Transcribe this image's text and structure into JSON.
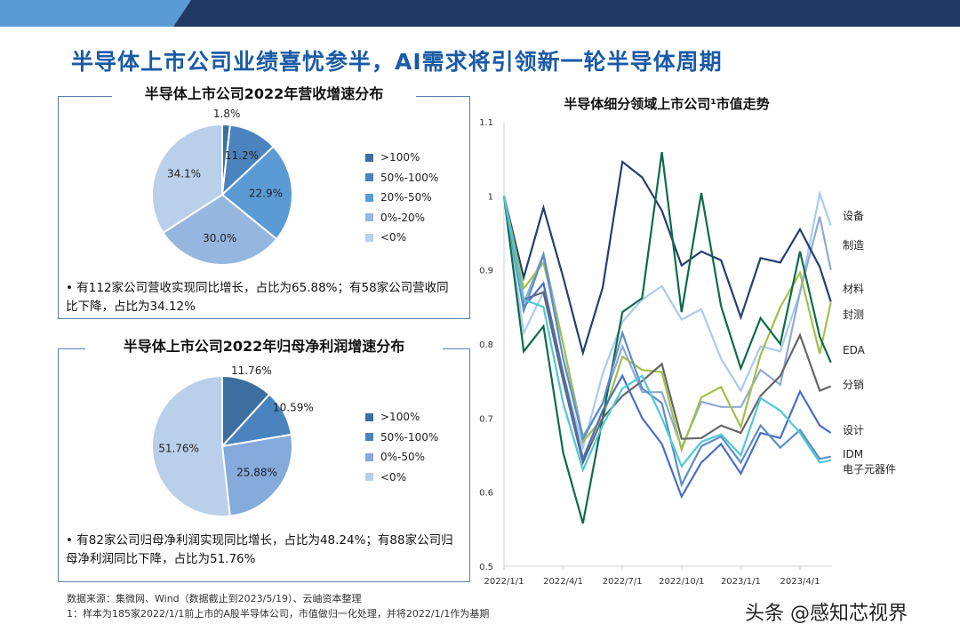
{
  "header": {
    "title": "半导体上市公司业绩喜忧参半，AI需求将引领新一轮半导体周期",
    "colors": {
      "band_light": "#5b9bd5",
      "band_dark": "#1f3864"
    }
  },
  "chart_data": [
    {
      "type": "pie",
      "title": "半导体上市公司2022年营收增速分布",
      "categories": [
        ">100%",
        "50%-100%",
        "20%-50%",
        "0%-20%",
        "<0%"
      ],
      "values": [
        1.8,
        11.2,
        22.9,
        30.0,
        34.1
      ],
      "labels": [
        "1.8%",
        "11.2%",
        "22.9%",
        "30.0%",
        "34.1%"
      ],
      "colors": [
        "#3c6e9f",
        "#4a83bd",
        "#5b9bd5",
        "#95b6df",
        "#b9cfea"
      ],
      "legend": "right",
      "note": "有112家公司营收实现同比增长，占比为65.88%；有58家公司营收同比下降，占比为34.12%"
    },
    {
      "type": "pie",
      "title": "半导体上市公司2022年归母净利润增速分布",
      "categories": [
        ">100%",
        "50%-100%",
        "0%-50%",
        "<0%"
      ],
      "values": [
        11.76,
        10.59,
        25.88,
        51.76
      ],
      "labels": [
        "11.76%",
        "10.59%",
        "25.88%",
        "51.76%"
      ],
      "colors": [
        "#3c6e9f",
        "#4a83bd",
        "#85aadc",
        "#b9cfea"
      ],
      "legend": "right",
      "note": "有82家公司归母净利润实现同比增长，占比为48.24%；有88家公司归母净利润同比下降，占比为51.76%"
    },
    {
      "type": "line",
      "title": "半导体细分领域上市公司¹市值走势",
      "x": [
        "2022/1/1",
        "2022/2/1",
        "2022/3/1",
        "2022/4/1",
        "2022/5/1",
        "2022/6/1",
        "2022/7/1",
        "2022/8/1",
        "2022/9/1",
        "2022/10/1",
        "2022/11/1",
        "2022/12/1",
        "2023/1/1",
        "2023/2/1",
        "2023/3/1",
        "2023/4/1",
        "2023/5/1",
        "2023/5/19"
      ],
      "xticks": [
        "2022/1/1",
        "2022/4/1",
        "2022/7/1",
        "2022/10/1",
        "2023/1/1",
        "2023/4/1"
      ],
      "yticks": [
        "0.5",
        "0.6",
        "0.7",
        "0.8",
        "0.9",
        "1",
        "1.1"
      ],
      "ylim": [
        0.5,
        1.1
      ],
      "grid": false,
      "legend": "right-end labels",
      "series": [
        {
          "name": "设备",
          "color": "#a9cbee",
          "values": [
            1.0,
            0.815,
            0.87,
            0.76,
            0.66,
            0.76,
            0.83,
            0.86,
            0.878,
            0.833,
            0.847,
            0.78,
            0.737,
            0.797,
            0.79,
            0.87,
            1.003,
            0.96
          ]
        },
        {
          "name": "制造",
          "color": "#8fa9d6",
          "values": [
            1.0,
            0.855,
            0.922,
            0.8,
            0.675,
            0.72,
            0.797,
            0.735,
            0.735,
            0.66,
            0.722,
            0.715,
            0.715,
            0.765,
            0.745,
            0.87,
            0.972,
            0.9
          ]
        },
        {
          "name": "材料",
          "color": "#223f72",
          "values": [
            1.0,
            0.89,
            0.984,
            0.89,
            0.788,
            0.876,
            1.046,
            1.025,
            0.98,
            0.906,
            0.925,
            0.913,
            0.836,
            0.916,
            0.91,
            0.955,
            0.904,
            0.857
          ]
        },
        {
          "name": "封测",
          "color": "#a2c04a",
          "values": [
            1.0,
            0.875,
            0.91,
            0.8,
            0.668,
            0.7,
            0.783,
            0.765,
            0.762,
            0.657,
            0.728,
            0.742,
            0.688,
            0.785,
            0.85,
            0.896,
            0.787,
            0.856
          ]
        },
        {
          "name": "EDA",
          "color": "#0e6b4a",
          "values": [
            1.0,
            0.79,
            0.824,
            0.653,
            0.558,
            0.7,
            0.843,
            0.862,
            1.059,
            0.843,
            1.004,
            0.851,
            0.767,
            0.835,
            0.8,
            0.925,
            0.81,
            0.775
          ]
        },
        {
          "name": "分销",
          "color": "#666666",
          "values": [
            1.0,
            0.86,
            0.87,
            0.75,
            0.64,
            0.7,
            0.73,
            0.75,
            0.773,
            0.672,
            0.673,
            0.69,
            0.68,
            0.73,
            0.757,
            0.812,
            0.737,
            0.743
          ]
        },
        {
          "name": "设计",
          "color": "#4a6ec6",
          "values": [
            1.0,
            0.85,
            0.882,
            0.76,
            0.645,
            0.71,
            0.757,
            0.7,
            0.665,
            0.594,
            0.64,
            0.665,
            0.625,
            0.68,
            0.673,
            0.736,
            0.69,
            0.68
          ]
        },
        {
          "name": "IDM",
          "color": "#5d8ec4",
          "values": [
            1.0,
            0.845,
            0.92,
            0.78,
            0.672,
            0.72,
            0.815,
            0.74,
            0.72,
            0.61,
            0.662,
            0.675,
            0.64,
            0.69,
            0.66,
            0.684,
            0.645,
            0.648
          ]
        },
        {
          "name": "电子元器件",
          "color": "#4fc8d8",
          "values": [
            1.0,
            0.86,
            0.85,
            0.72,
            0.63,
            0.69,
            0.74,
            0.757,
            0.7,
            0.635,
            0.668,
            0.678,
            0.65,
            0.727,
            0.71,
            0.68,
            0.64,
            0.643
          ]
        }
      ]
    }
  ],
  "footer": {
    "source": "数据来源：集微网、Wind（数据截止到2023/5/19）、云岫资本整理",
    "footnote": "1：样本为185家2022/1/1前上市的A股半导体公司，市值做归一化处理，并将2022/1/1作为基期",
    "watermark": "头条 @感知芯视界"
  }
}
